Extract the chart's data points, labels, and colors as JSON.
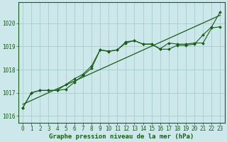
{
  "title": "Graphe pression niveau de la mer (hPa)",
  "background_color": "#cce8ea",
  "grid_color": "#aacccc",
  "line_color": "#1a5c1a",
  "marker_color": "#1a5c1a",
  "xlim": [
    -0.5,
    23.5
  ],
  "ylim": [
    1015.7,
    1020.9
  ],
  "yticks": [
    1016,
    1017,
    1018,
    1019,
    1020
  ],
  "xticks": [
    0,
    1,
    2,
    3,
    4,
    5,
    6,
    7,
    8,
    9,
    10,
    11,
    12,
    13,
    14,
    15,
    16,
    17,
    18,
    19,
    20,
    21,
    22,
    23
  ],
  "series1_x": [
    0,
    1,
    2,
    3,
    4,
    5,
    6,
    7,
    8,
    9,
    10,
    11,
    12,
    13,
    14,
    15,
    16,
    17,
    18,
    19,
    20,
    21,
    22,
    23
  ],
  "series1_y": [
    1016.35,
    1017.0,
    1017.1,
    1017.1,
    1017.1,
    1017.15,
    1017.45,
    1017.75,
    1018.05,
    1018.85,
    1018.8,
    1018.85,
    1019.2,
    1019.25,
    1019.1,
    1019.1,
    1018.9,
    1019.15,
    1019.1,
    1019.1,
    1019.15,
    1019.15,
    1019.8,
    1019.85
  ],
  "series2_x": [
    0,
    1,
    2,
    3,
    4,
    5,
    6,
    7,
    8,
    9,
    10,
    11,
    12,
    13,
    14,
    15,
    16,
    17,
    18,
    19,
    20,
    21,
    22,
    23
  ],
  "series2_y": [
    1016.35,
    1017.0,
    1017.1,
    1017.1,
    1017.1,
    1017.35,
    1017.6,
    1017.8,
    1018.15,
    1018.85,
    1018.78,
    1018.85,
    1019.15,
    1019.25,
    1019.1,
    1019.1,
    1018.88,
    1018.88,
    1019.05,
    1019.05,
    1019.1,
    1019.5,
    1019.85,
    1020.5
  ],
  "trend_x": [
    0,
    23
  ],
  "trend_y": [
    1016.5,
    1020.35
  ],
  "tick_fontsize": 5.5,
  "title_fontsize": 6.5,
  "font_family": "monospace"
}
